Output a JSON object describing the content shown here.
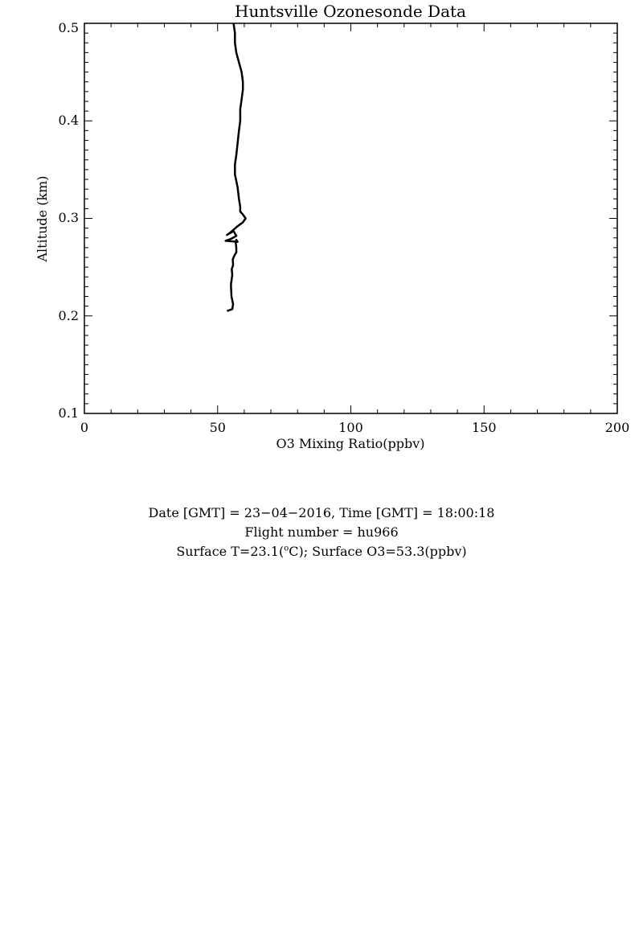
{
  "chart_data": {
    "type": "line",
    "title": "Huntsville Ozonesonde Data",
    "xlabel": "O3 Mixing Ratio(ppbv)",
    "ylabel": "Altitude (km)",
    "xlim": [
      0,
      200
    ],
    "ylim": [
      0.1,
      0.5
    ],
    "x_ticks": [
      "0",
      "50",
      "100",
      "150",
      "200"
    ],
    "y_ticks": [
      "0.1",
      "0.2",
      "0.3",
      "0.4",
      "0.5"
    ],
    "grid": false,
    "series": [
      {
        "x": [
          53.5,
          55.5,
          55.8,
          55.2,
          55.0,
          55.5,
          55.3,
          55.8,
          55.7,
          56.5,
          57.0,
          57.0,
          56.8,
          57.0,
          57.5,
          53.0,
          55.0,
          57.0,
          56.0,
          53.5,
          55.0,
          57.5,
          59.5,
          60.5,
          59.5,
          58.5,
          58.5,
          58.0,
          57.5,
          56.5,
          56.5,
          57.0,
          57.5,
          58.0,
          58.5,
          58.5,
          59.0,
          59.5,
          59.5,
          59.0,
          58.0,
          57.0,
          56.5,
          56.5,
          56.0
        ],
        "y": [
          0.205,
          0.207,
          0.212,
          0.22,
          0.232,
          0.242,
          0.248,
          0.252,
          0.258,
          0.263,
          0.265,
          0.27,
          0.275,
          0.278,
          0.276,
          0.277,
          0.279,
          0.282,
          0.287,
          0.283,
          0.286,
          0.292,
          0.296,
          0.3,
          0.304,
          0.307,
          0.312,
          0.32,
          0.332,
          0.345,
          0.355,
          0.365,
          0.377,
          0.39,
          0.4,
          0.412,
          0.422,
          0.432,
          0.44,
          0.45,
          0.46,
          0.47,
          0.48,
          0.49,
          0.5
        ]
      }
    ]
  },
  "info": {
    "line1": "Date [GMT] = 23−04−2016,  Time [GMT] = 18:00:18",
    "line2": "Flight number = hu966",
    "line3_pre": "Surface T=23.1(",
    "line3_sup": "o",
    "line3_post": "C); Surface O3=53.3(ppbv)"
  }
}
